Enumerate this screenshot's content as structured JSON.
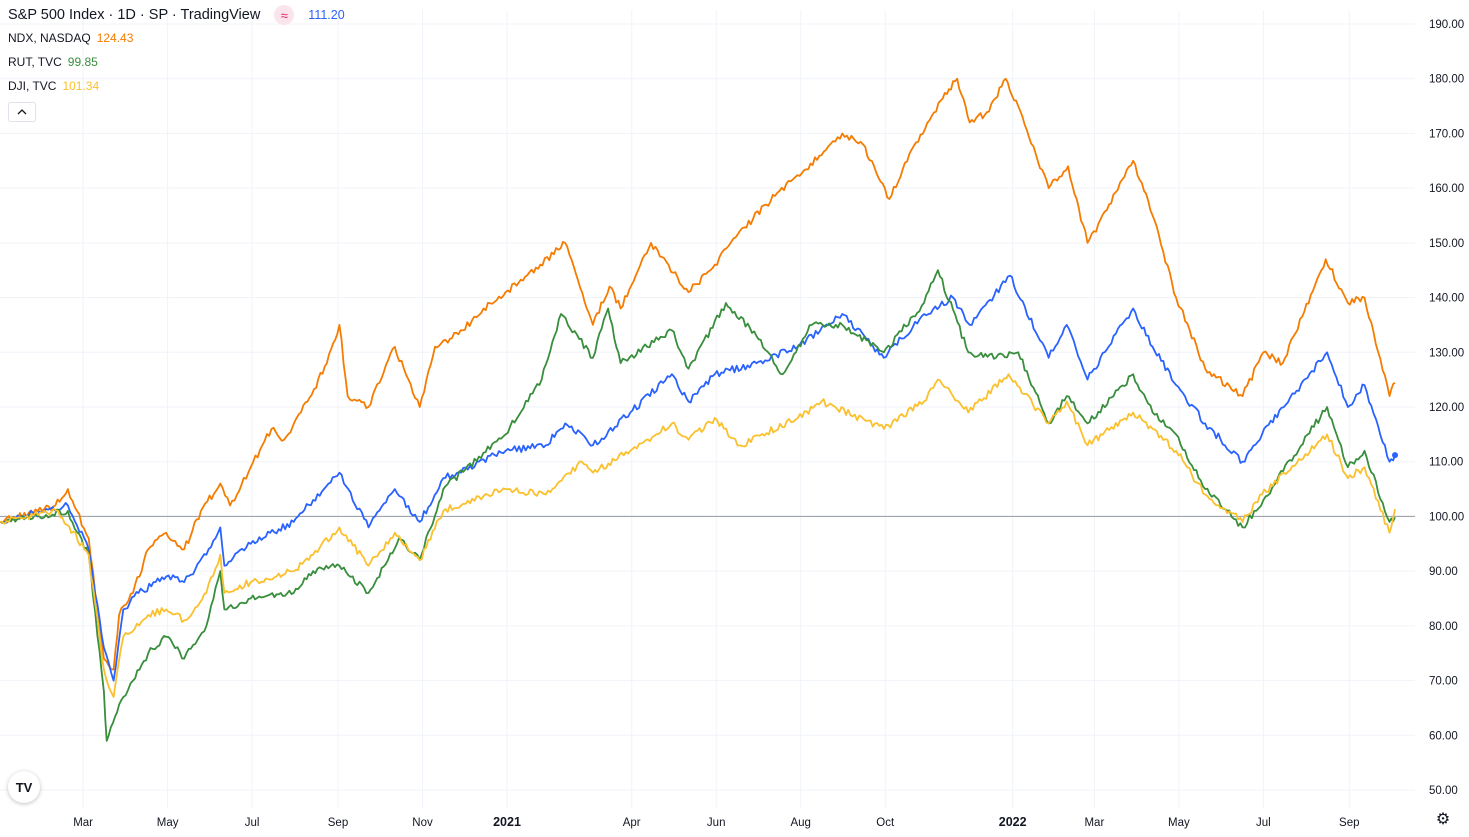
{
  "legend": {
    "title": "S&P 500 Index · 1D · SP",
    "provider": "· TradingView",
    "badge_symbol": "≈",
    "main_value": "111.20",
    "main_color": "#2962ff",
    "rows": [
      {
        "symbol": "NDX, NASDAQ",
        "value": "124.43",
        "color": "#f57c00"
      },
      {
        "symbol": "RUT, TVC",
        "value": "99.85",
        "color": "#388e3c"
      },
      {
        "symbol": "DJI, TVC",
        "value": "101.34",
        "color": "#fbc02d"
      }
    ],
    "collapse_icon": "chevron-up-icon"
  },
  "logo_text": "TV",
  "settings_icon": "gear-icon",
  "chart_data": {
    "type": "line",
    "y_ticks": [
      "190.00",
      "180.00",
      "170.00",
      "160.00",
      "150.00",
      "140.00",
      "130.00",
      "120.00",
      "110.00",
      "100.00",
      "90.00",
      "80.00",
      "70.00",
      "60.00",
      "50.00"
    ],
    "ylim": [
      50,
      190
    ],
    "baseline": 100,
    "x_ticks": [
      {
        "label": "Mar",
        "x": "2020-03-01"
      },
      {
        "label": "May",
        "x": "2020-05-01"
      },
      {
        "label": "Jul",
        "x": "2020-07-01"
      },
      {
        "label": "Sep",
        "x": "2020-09-01"
      },
      {
        "label": "Nov",
        "x": "2020-11-01"
      },
      {
        "label": "2021",
        "x": "2021-01-01"
      },
      {
        "label": "Apr",
        "x": "2021-04-01"
      },
      {
        "label": "Jun",
        "x": "2021-06-01"
      },
      {
        "label": "Aug",
        "x": "2021-08-01"
      },
      {
        "label": "Oct",
        "x": "2021-10-01"
      },
      {
        "label": "2022",
        "x": "2022-01-01"
      },
      {
        "label": "Mar",
        "x": "2022-03-01"
      },
      {
        "label": "May",
        "x": "2022-05-01"
      },
      {
        "label": "Jul",
        "x": "2022-07-01"
      },
      {
        "label": "Sep",
        "x": "2022-09-01"
      }
    ],
    "series": [
      {
        "name": "NDX, NASDAQ",
        "color": "#f57c00",
        "points": [
          [
            "2020-01-01",
            99
          ],
          [
            "2020-02-10",
            102
          ],
          [
            "2020-02-19",
            105
          ],
          [
            "2020-03-05",
            96
          ],
          [
            "2020-03-16",
            74
          ],
          [
            "2020-03-23",
            72
          ],
          [
            "2020-03-27",
            82
          ],
          [
            "2020-04-06",
            86
          ],
          [
            "2020-04-17",
            94
          ],
          [
            "2020-04-30",
            97
          ],
          [
            "2020-05-13",
            94
          ],
          [
            "2020-05-25",
            101
          ],
          [
            "2020-06-08",
            106
          ],
          [
            "2020-06-15",
            102
          ],
          [
            "2020-06-30",
            109
          ],
          [
            "2020-07-15",
            116
          ],
          [
            "2020-07-24",
            114
          ],
          [
            "2020-08-10",
            121
          ],
          [
            "2020-08-24",
            128
          ],
          [
            "2020-09-02",
            135
          ],
          [
            "2020-09-08",
            122
          ],
          [
            "2020-09-23",
            120
          ],
          [
            "2020-10-12",
            131
          ],
          [
            "2020-10-30",
            120
          ],
          [
            "2020-11-10",
            131
          ],
          [
            "2020-11-30",
            134
          ],
          [
            "2020-12-15",
            138
          ],
          [
            "2020-12-31",
            141
          ],
          [
            "2021-01-25",
            146
          ],
          [
            "2021-02-12",
            150
          ],
          [
            "2021-03-04",
            135
          ],
          [
            "2021-03-16",
            142
          ],
          [
            "2021-03-24",
            138
          ],
          [
            "2021-04-15",
            150
          ],
          [
            "2021-05-12",
            141
          ],
          [
            "2021-05-31",
            146
          ],
          [
            "2021-06-15",
            151
          ],
          [
            "2021-07-07",
            157
          ],
          [
            "2021-07-28",
            162
          ],
          [
            "2021-08-16",
            166
          ],
          [
            "2021-08-31",
            170
          ],
          [
            "2021-09-15",
            168
          ],
          [
            "2021-10-04",
            158
          ],
          [
            "2021-10-20",
            167
          ],
          [
            "2021-11-10",
            176
          ],
          [
            "2021-11-22",
            180
          ],
          [
            "2021-12-01",
            172
          ],
          [
            "2021-12-15",
            174
          ],
          [
            "2021-12-27",
            180
          ],
          [
            "2022-01-05",
            175
          ],
          [
            "2022-01-27",
            160
          ],
          [
            "2022-02-10",
            164
          ],
          [
            "2022-02-24",
            150
          ],
          [
            "2022-03-10",
            156
          ],
          [
            "2022-03-29",
            165
          ],
          [
            "2022-04-12",
            155
          ],
          [
            "2022-04-29",
            140
          ],
          [
            "2022-05-20",
            127
          ],
          [
            "2022-06-16",
            122
          ],
          [
            "2022-07-01",
            130
          ],
          [
            "2022-07-15",
            128
          ],
          [
            "2022-08-15",
            147
          ],
          [
            "2022-08-31",
            139
          ],
          [
            "2022-09-12",
            140
          ],
          [
            "2022-09-30",
            122
          ],
          [
            "2022-10-04",
            124.43
          ]
        ]
      },
      {
        "name": "S&P 500 Index",
        "color": "#2962ff",
        "points": [
          [
            "2020-01-01",
            99
          ],
          [
            "2020-02-19",
            102
          ],
          [
            "2020-03-05",
            94
          ],
          [
            "2020-03-16",
            76
          ],
          [
            "2020-03-23",
            70
          ],
          [
            "2020-03-30",
            83
          ],
          [
            "2020-04-10",
            86
          ],
          [
            "2020-04-30",
            89
          ],
          [
            "2020-05-13",
            88
          ],
          [
            "2020-05-29",
            93
          ],
          [
            "2020-06-08",
            98
          ],
          [
            "2020-06-11",
            91
          ],
          [
            "2020-06-30",
            95
          ],
          [
            "2020-07-31",
            99
          ],
          [
            "2020-08-14",
            103
          ],
          [
            "2020-09-02",
            108
          ],
          [
            "2020-09-23",
            98
          ],
          [
            "2020-10-12",
            105
          ],
          [
            "2020-10-30",
            99
          ],
          [
            "2020-11-16",
            107
          ],
          [
            "2020-12-31",
            112
          ],
          [
            "2021-01-29",
            113
          ],
          [
            "2021-02-12",
            117
          ],
          [
            "2021-03-04",
            113
          ],
          [
            "2021-03-31",
            119
          ],
          [
            "2021-04-30",
            126
          ],
          [
            "2021-05-12",
            121
          ],
          [
            "2021-05-31",
            126
          ],
          [
            "2021-06-30",
            128
          ],
          [
            "2021-07-30",
            131
          ],
          [
            "2021-08-31",
            137
          ],
          [
            "2021-09-30",
            129
          ],
          [
            "2021-10-29",
            137
          ],
          [
            "2021-11-19",
            140
          ],
          [
            "2021-12-01",
            135
          ],
          [
            "2021-12-30",
            144
          ],
          [
            "2022-01-27",
            129
          ],
          [
            "2022-02-09",
            135
          ],
          [
            "2022-02-24",
            125
          ],
          [
            "2022-03-29",
            138
          ],
          [
            "2022-04-12",
            131
          ],
          [
            "2022-04-29",
            124
          ],
          [
            "2022-05-20",
            117
          ],
          [
            "2022-06-16",
            110
          ],
          [
            "2022-06-30",
            115
          ],
          [
            "2022-08-16",
            130
          ],
          [
            "2022-08-31",
            120
          ],
          [
            "2022-09-12",
            124
          ],
          [
            "2022-09-30",
            110
          ],
          [
            "2022-10-04",
            111.2
          ]
        ]
      },
      {
        "name": "RUT, TVC",
        "color": "#388e3c",
        "points": [
          [
            "2020-01-01",
            99
          ],
          [
            "2020-02-19",
            101
          ],
          [
            "2020-03-05",
            93
          ],
          [
            "2020-03-16",
            68
          ],
          [
            "2020-03-18",
            59
          ],
          [
            "2020-03-30",
            67
          ],
          [
            "2020-04-06",
            70
          ],
          [
            "2020-04-17",
            75
          ],
          [
            "2020-04-30",
            78
          ],
          [
            "2020-05-13",
            74
          ],
          [
            "2020-05-29",
            80
          ],
          [
            "2020-06-08",
            90
          ],
          [
            "2020-06-11",
            83
          ],
          [
            "2020-06-30",
            85
          ],
          [
            "2020-07-31",
            86
          ],
          [
            "2020-08-14",
            90
          ],
          [
            "2020-09-02",
            91
          ],
          [
            "2020-09-23",
            86
          ],
          [
            "2020-10-15",
            96
          ],
          [
            "2020-10-30",
            92
          ],
          [
            "2020-11-16",
            105
          ],
          [
            "2020-12-31",
            115
          ],
          [
            "2021-01-26",
            125
          ],
          [
            "2021-02-09",
            137
          ],
          [
            "2021-03-04",
            129
          ],
          [
            "2021-03-15",
            138
          ],
          [
            "2021-03-24",
            128
          ],
          [
            "2021-04-30",
            134
          ],
          [
            "2021-05-12",
            127
          ],
          [
            "2021-06-08",
            139
          ],
          [
            "2021-06-30",
            133
          ],
          [
            "2021-07-19",
            126
          ],
          [
            "2021-08-09",
            135
          ],
          [
            "2021-08-31",
            135
          ],
          [
            "2021-09-30",
            130
          ],
          [
            "2021-10-29",
            139
          ],
          [
            "2021-11-08",
            145
          ],
          [
            "2021-11-30",
            130
          ],
          [
            "2021-12-20",
            129
          ],
          [
            "2022-01-05",
            130
          ],
          [
            "2022-01-27",
            117
          ],
          [
            "2022-02-09",
            122
          ],
          [
            "2022-02-24",
            117
          ],
          [
            "2022-03-29",
            126
          ],
          [
            "2022-04-12",
            119
          ],
          [
            "2022-04-29",
            115
          ],
          [
            "2022-05-20",
            105
          ],
          [
            "2022-06-16",
            98
          ],
          [
            "2022-07-01",
            103
          ],
          [
            "2022-08-16",
            120
          ],
          [
            "2022-08-31",
            109
          ],
          [
            "2022-09-12",
            112
          ],
          [
            "2022-09-30",
            99
          ],
          [
            "2022-10-04",
            99.85
          ]
        ]
      },
      {
        "name": "DJI, TVC",
        "color": "#fbc02d",
        "points": [
          [
            "2020-01-01",
            99
          ],
          [
            "2020-02-12",
            101
          ],
          [
            "2020-03-05",
            93
          ],
          [
            "2020-03-16",
            72
          ],
          [
            "2020-03-23",
            67
          ],
          [
            "2020-03-30",
            78
          ],
          [
            "2020-04-17",
            82
          ],
          [
            "2020-04-30",
            83
          ],
          [
            "2020-05-13",
            81
          ],
          [
            "2020-05-29",
            86
          ],
          [
            "2020-06-08",
            93
          ],
          [
            "2020-06-11",
            86
          ],
          [
            "2020-06-30",
            88
          ],
          [
            "2020-07-31",
            90
          ],
          [
            "2020-08-14",
            93
          ],
          [
            "2020-09-02",
            98
          ],
          [
            "2020-09-23",
            91
          ],
          [
            "2020-10-12",
            97
          ],
          [
            "2020-10-30",
            92
          ],
          [
            "2020-11-16",
            101
          ],
          [
            "2020-12-31",
            105
          ],
          [
            "2021-01-29",
            104
          ],
          [
            "2021-02-24",
            110
          ],
          [
            "2021-03-04",
            108
          ],
          [
            "2021-03-31",
            112
          ],
          [
            "2021-04-30",
            117
          ],
          [
            "2021-05-12",
            114
          ],
          [
            "2021-05-31",
            118
          ],
          [
            "2021-06-18",
            113
          ],
          [
            "2021-07-30",
            118
          ],
          [
            "2021-08-16",
            121
          ],
          [
            "2021-09-30",
            116
          ],
          [
            "2021-10-29",
            121
          ],
          [
            "2021-11-08",
            125
          ],
          [
            "2021-11-30",
            119
          ],
          [
            "2021-12-29",
            126
          ],
          [
            "2022-01-27",
            117
          ],
          [
            "2022-02-09",
            121
          ],
          [
            "2022-02-24",
            113
          ],
          [
            "2022-03-29",
            119
          ],
          [
            "2022-04-12",
            116
          ],
          [
            "2022-04-29",
            112
          ],
          [
            "2022-05-20",
            104
          ],
          [
            "2022-06-16",
            99
          ],
          [
            "2022-06-30",
            104
          ],
          [
            "2022-08-16",
            115
          ],
          [
            "2022-08-31",
            107
          ],
          [
            "2022-09-12",
            109
          ],
          [
            "2022-09-30",
            97
          ],
          [
            "2022-10-04",
            101.34
          ]
        ]
      }
    ]
  }
}
